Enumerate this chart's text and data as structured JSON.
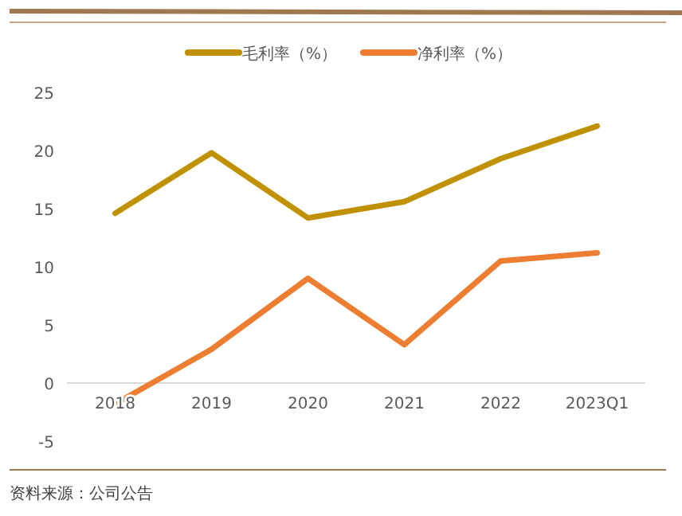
{
  "chart_data": {
    "type": "line",
    "categories": [
      "2018",
      "2019",
      "2020",
      "2021",
      "2022",
      "2023Q1"
    ],
    "series": [
      {
        "name": "毛利率（%）",
        "color": "#c09100",
        "values": [
          14.6,
          19.8,
          14.2,
          15.6,
          19.3,
          22.1
        ]
      },
      {
        "name": "净利率（%）",
        "color": "#ed7d31",
        "values": [
          -1.8,
          2.9,
          9.0,
          3.3,
          10.5,
          11.2
        ]
      }
    ],
    "ylim": [
      -5,
      25
    ],
    "yticks": [
      -5,
      0,
      5,
      10,
      15,
      20,
      25
    ],
    "grid": false,
    "legend": "top",
    "marker": "none",
    "line_style": "solid",
    "annotations": [
      "资料来源：公司公告"
    ]
  }
}
